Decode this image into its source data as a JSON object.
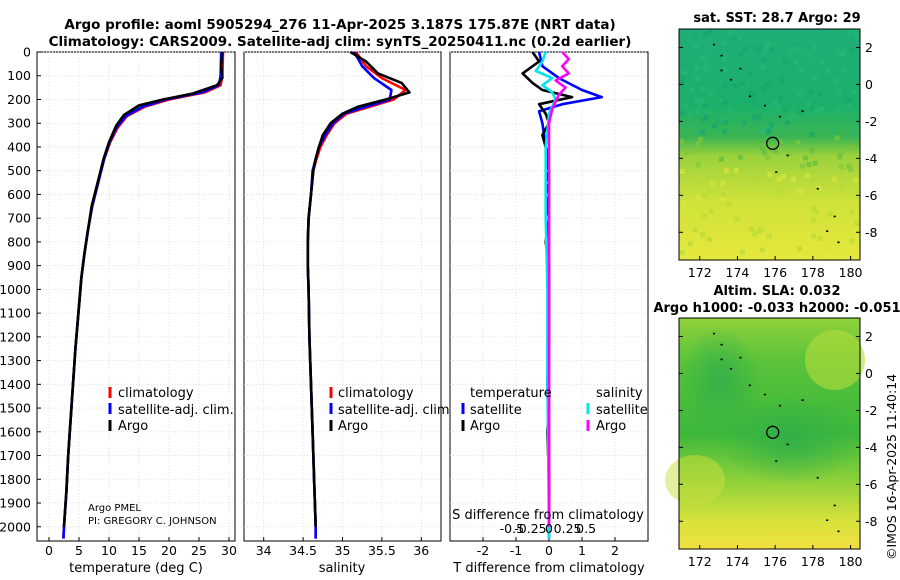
{
  "title_line1": "Argo profile: aoml 5905294_276 11-Apr-2025 3.187S 175.87E (NRT data)",
  "title_line2": "Climatology: CARS2009. Satellite-adj clim: synTS_20250411.nc (0.2d earlier)",
  "side_label": "©IMOS 16-Apr-2025 11:40:14",
  "pi_line1": "Argo PMEL",
  "pi_line2": "PI: GREGORY C. JOHNSON",
  "depth_ticks": [
    0,
    100,
    200,
    300,
    400,
    500,
    600,
    700,
    800,
    900,
    1000,
    1100,
    1200,
    1300,
    1400,
    1500,
    1600,
    1700,
    1800,
    1900,
    2000
  ],
  "colors": {
    "climatology": "#ff0000",
    "satellite": "#0000ff",
    "argo": "#000000",
    "sat_s": "#00e5ee",
    "argo_s": "#ff00ff"
  },
  "chart_data": [
    {
      "type": "line",
      "name": "temperature profile",
      "xlabel": "temperature (deg C)",
      "xlim": [
        -2,
        31
      ],
      "ylim": [
        2060,
        0
      ],
      "xticks": [
        0,
        5,
        10,
        15,
        20,
        25,
        30
      ],
      "legend": [
        "climatology",
        "satellite-adj. clim.",
        "Argo"
      ],
      "series": [
        {
          "name": "climatology",
          "color": "#ff0000",
          "points": [
            [
              29.0,
              0
            ],
            [
              28.9,
              100
            ],
            [
              28.6,
              140
            ],
            [
              26.0,
              170
            ],
            [
              20.0,
              200
            ],
            [
              16.0,
              230
            ],
            [
              13.0,
              270
            ],
            [
              11.4,
              320
            ],
            [
              10.2,
              380
            ],
            [
              9.2,
              450
            ],
            [
              8.2,
              550
            ],
            [
              7.2,
              650
            ],
            [
              6.5,
              750
            ],
            [
              5.9,
              850
            ],
            [
              5.4,
              950
            ],
            [
              4.9,
              1100
            ],
            [
              4.4,
              1250
            ],
            [
              4.0,
              1400
            ],
            [
              3.6,
              1550
            ],
            [
              3.2,
              1700
            ],
            [
              2.9,
              1850
            ],
            [
              2.5,
              2000
            ],
            [
              2.4,
              2050
            ]
          ]
        },
        {
          "name": "satellite-adj. clim.",
          "color": "#0000ff",
          "points": [
            [
              28.7,
              0
            ],
            [
              28.6,
              100
            ],
            [
              28.3,
              140
            ],
            [
              25.5,
              170
            ],
            [
              19.5,
              200
            ],
            [
              15.6,
              230
            ],
            [
              12.8,
              270
            ],
            [
              11.2,
              320
            ],
            [
              10.1,
              380
            ],
            [
              9.2,
              450
            ],
            [
              8.2,
              550
            ],
            [
              7.2,
              650
            ],
            [
              6.5,
              750
            ],
            [
              5.9,
              850
            ],
            [
              5.4,
              950
            ],
            [
              4.9,
              1100
            ],
            [
              4.4,
              1250
            ],
            [
              4.0,
              1400
            ],
            [
              3.6,
              1550
            ],
            [
              3.2,
              1700
            ],
            [
              2.9,
              1850
            ],
            [
              2.5,
              2000
            ],
            [
              2.4,
              2050
            ]
          ]
        },
        {
          "name": "Argo",
          "color": "#000000",
          "points": [
            [
              28.9,
              0
            ],
            [
              28.7,
              60
            ],
            [
              28.9,
              110
            ],
            [
              28.0,
              140
            ],
            [
              24.0,
              175
            ],
            [
              19.0,
              200
            ],
            [
              15.0,
              225
            ],
            [
              12.5,
              265
            ],
            [
              11.2,
              310
            ],
            [
              10.0,
              380
            ],
            [
              9.1,
              450
            ],
            [
              8.1,
              550
            ],
            [
              7.1,
              650
            ],
            [
              6.5,
              750
            ],
            [
              5.9,
              850
            ],
            [
              5.4,
              950
            ],
            [
              4.9,
              1100
            ],
            [
              4.4,
              1250
            ],
            [
              4.0,
              1400
            ],
            [
              3.6,
              1550
            ],
            [
              3.2,
              1700
            ],
            [
              2.9,
              1850
            ],
            [
              2.5,
              2000
            ]
          ]
        }
      ]
    },
    {
      "type": "line",
      "name": "salinity profile",
      "xlabel": "salinity",
      "xlim": [
        33.75,
        36.25
      ],
      "ylim": [
        2060,
        0
      ],
      "xticks": [
        34,
        34.5,
        35,
        35.5,
        36
      ],
      "legend": [
        "climatology",
        "satellite-adj. clim.",
        "Argo"
      ],
      "series": [
        {
          "name": "climatology",
          "color": "#ff0000",
          "points": [
            [
              35.17,
              0
            ],
            [
              35.3,
              60
            ],
            [
              35.5,
              110
            ],
            [
              35.8,
              160
            ],
            [
              35.65,
              200
            ],
            [
              35.35,
              230
            ],
            [
              35.05,
              260
            ],
            [
              34.9,
              300
            ],
            [
              34.8,
              350
            ],
            [
              34.72,
              400
            ],
            [
              34.67,
              450
            ],
            [
              34.63,
              500
            ],
            [
              34.6,
              600
            ],
            [
              34.57,
              700
            ],
            [
              34.56,
              800
            ],
            [
              34.56,
              900
            ],
            [
              34.57,
              1000
            ],
            [
              34.58,
              1200
            ],
            [
              34.6,
              1400
            ],
            [
              34.62,
              1600
            ],
            [
              34.64,
              1800
            ],
            [
              34.66,
              2000
            ],
            [
              34.66,
              2050
            ]
          ]
        },
        {
          "name": "satellite-adj. clim.",
          "color": "#0000ff",
          "points": [
            [
              35.15,
              0
            ],
            [
              35.25,
              60
            ],
            [
              35.4,
              110
            ],
            [
              35.62,
              160
            ],
            [
              35.6,
              200
            ],
            [
              35.3,
              230
            ],
            [
              35.02,
              260
            ],
            [
              34.88,
              300
            ],
            [
              34.78,
              350
            ],
            [
              34.7,
              400
            ],
            [
              34.66,
              450
            ],
            [
              34.62,
              500
            ],
            [
              34.6,
              600
            ],
            [
              34.57,
              700
            ],
            [
              34.56,
              800
            ],
            [
              34.56,
              900
            ],
            [
              34.57,
              1000
            ],
            [
              34.58,
              1200
            ],
            [
              34.6,
              1400
            ],
            [
              34.62,
              1600
            ],
            [
              34.64,
              1800
            ],
            [
              34.66,
              2000
            ],
            [
              34.66,
              2050
            ]
          ]
        },
        {
          "name": "Argo",
          "color": "#000000",
          "points": [
            [
              35.1,
              0
            ],
            [
              35.3,
              40
            ],
            [
              35.45,
              90
            ],
            [
              35.75,
              130
            ],
            [
              35.85,
              170
            ],
            [
              35.55,
              200
            ],
            [
              35.2,
              230
            ],
            [
              35.0,
              260
            ],
            [
              34.85,
              300
            ],
            [
              34.75,
              350
            ],
            [
              34.7,
              400
            ],
            [
              34.66,
              450
            ],
            [
              34.63,
              500
            ],
            [
              34.6,
              600
            ],
            [
              34.57,
              700
            ],
            [
              34.56,
              800
            ],
            [
              34.56,
              900
            ],
            [
              34.57,
              1000
            ],
            [
              34.58,
              1200
            ],
            [
              34.6,
              1400
            ],
            [
              34.62,
              1600
            ],
            [
              34.64,
              1800
            ],
            [
              34.66,
              2000
            ]
          ]
        }
      ]
    },
    {
      "type": "line",
      "name": "difference from climatology",
      "xlabel_T": "T difference from climatology",
      "xlabel_S": "S difference from climatology",
      "xlim": [
        -3,
        3
      ],
      "ylim": [
        2060,
        0
      ],
      "xticks_T": [
        -2,
        -1,
        0,
        1,
        2
      ],
      "xticks_S": [
        -0.5,
        -0.25,
        0,
        0.25,
        0.5
      ],
      "legend_T_title": "temperature",
      "legend_S_title": "salinity",
      "legend_T": [
        "satellite",
        "Argo"
      ],
      "legend_S": [
        "satellite",
        "Argo"
      ],
      "series": [
        {
          "name": "T satellite",
          "color": "#0000ff",
          "points": [
            [
              -0.3,
              0
            ],
            [
              -0.2,
              60
            ],
            [
              0.3,
              110
            ],
            [
              1.0,
              160
            ],
            [
              1.6,
              190
            ],
            [
              0.4,
              220
            ],
            [
              -0.3,
              250
            ],
            [
              -0.2,
              300
            ],
            [
              -0.1,
              400
            ],
            [
              0,
              500
            ],
            [
              0,
              700
            ],
            [
              0,
              1000
            ],
            [
              0,
              1400
            ],
            [
              0,
              2000
            ],
            [
              0,
              2050
            ]
          ]
        },
        {
          "name": "T Argo",
          "color": "#000000",
          "points": [
            [
              -0.5,
              0
            ],
            [
              -0.3,
              40
            ],
            [
              -0.8,
              90
            ],
            [
              -0.5,
              130
            ],
            [
              -0.2,
              160
            ],
            [
              0.7,
              190
            ],
            [
              -0.3,
              220
            ],
            [
              -0.1,
              260
            ],
            [
              0,
              300
            ],
            [
              -0.2,
              350
            ],
            [
              -0.1,
              400
            ],
            [
              0,
              450
            ],
            [
              -0.1,
              500
            ],
            [
              0,
              550
            ],
            [
              -0.1,
              600
            ],
            [
              0,
              700
            ],
            [
              -0.1,
              800
            ],
            [
              0,
              900
            ],
            [
              0,
              1000
            ],
            [
              0,
              1200
            ],
            [
              -0.05,
              1400
            ],
            [
              0,
              1500
            ],
            [
              -0.05,
              1600
            ],
            [
              0,
              1800
            ],
            [
              0,
              2000
            ]
          ]
        },
        {
          "name": "S satellite",
          "color": "#00e5ee",
          "points": [
            [
              -0.1,
              0
            ],
            [
              -0.2,
              40
            ],
            [
              -0.4,
              80
            ],
            [
              0.1,
              110
            ],
            [
              -0.2,
              140
            ],
            [
              0.1,
              170
            ],
            [
              0.2,
              200
            ],
            [
              0,
              260
            ],
            [
              -0.1,
              400
            ],
            [
              -0.1,
              700
            ],
            [
              -0.05,
              1000
            ],
            [
              -0.05,
              1400
            ],
            [
              -0.03,
              1600
            ],
            [
              0,
              2000
            ],
            [
              0,
              2050
            ]
          ]
        },
        {
          "name": "S Argo",
          "color": "#ff00ff",
          "points": [
            [
              0.4,
              0
            ],
            [
              0.6,
              30
            ],
            [
              0.4,
              60
            ],
            [
              0.6,
              90
            ],
            [
              0.2,
              120
            ],
            [
              0.5,
              150
            ],
            [
              0.3,
              180
            ],
            [
              0.2,
              210
            ],
            [
              0.1,
              240
            ],
            [
              0,
              300
            ],
            [
              0,
              500
            ],
            [
              0,
              800
            ],
            [
              0,
              1200
            ],
            [
              0,
              1600
            ],
            [
              0,
              2000
            ]
          ]
        }
      ]
    },
    {
      "type": "heatmap",
      "name": "sat SST map",
      "title": "sat. SST: 28.7 Argo: 29",
      "xticks": [
        172,
        174,
        176,
        178,
        180
      ],
      "yticks": [
        2,
        0,
        -2,
        -4,
        -6,
        -8
      ],
      "xlim": [
        170.9,
        180.5
      ],
      "ylim": [
        -9.5,
        3.0
      ],
      "argo_position": {
        "lon": 175.87,
        "lat": -3.187
      }
    },
    {
      "type": "heatmap",
      "name": "altimetry SLA map",
      "title_line1": "Altim. SLA: 0.032",
      "title_line2": "Argo h1000: -0.033 h2000: -0.051",
      "xticks": [
        172,
        174,
        176,
        178,
        180
      ],
      "yticks": [
        2,
        0,
        -2,
        -4,
        -6,
        -8
      ],
      "xlim": [
        170.9,
        180.5
      ],
      "ylim": [
        -9.5,
        3.0
      ],
      "argo_position": {
        "lon": 175.87,
        "lat": -3.187
      }
    }
  ]
}
